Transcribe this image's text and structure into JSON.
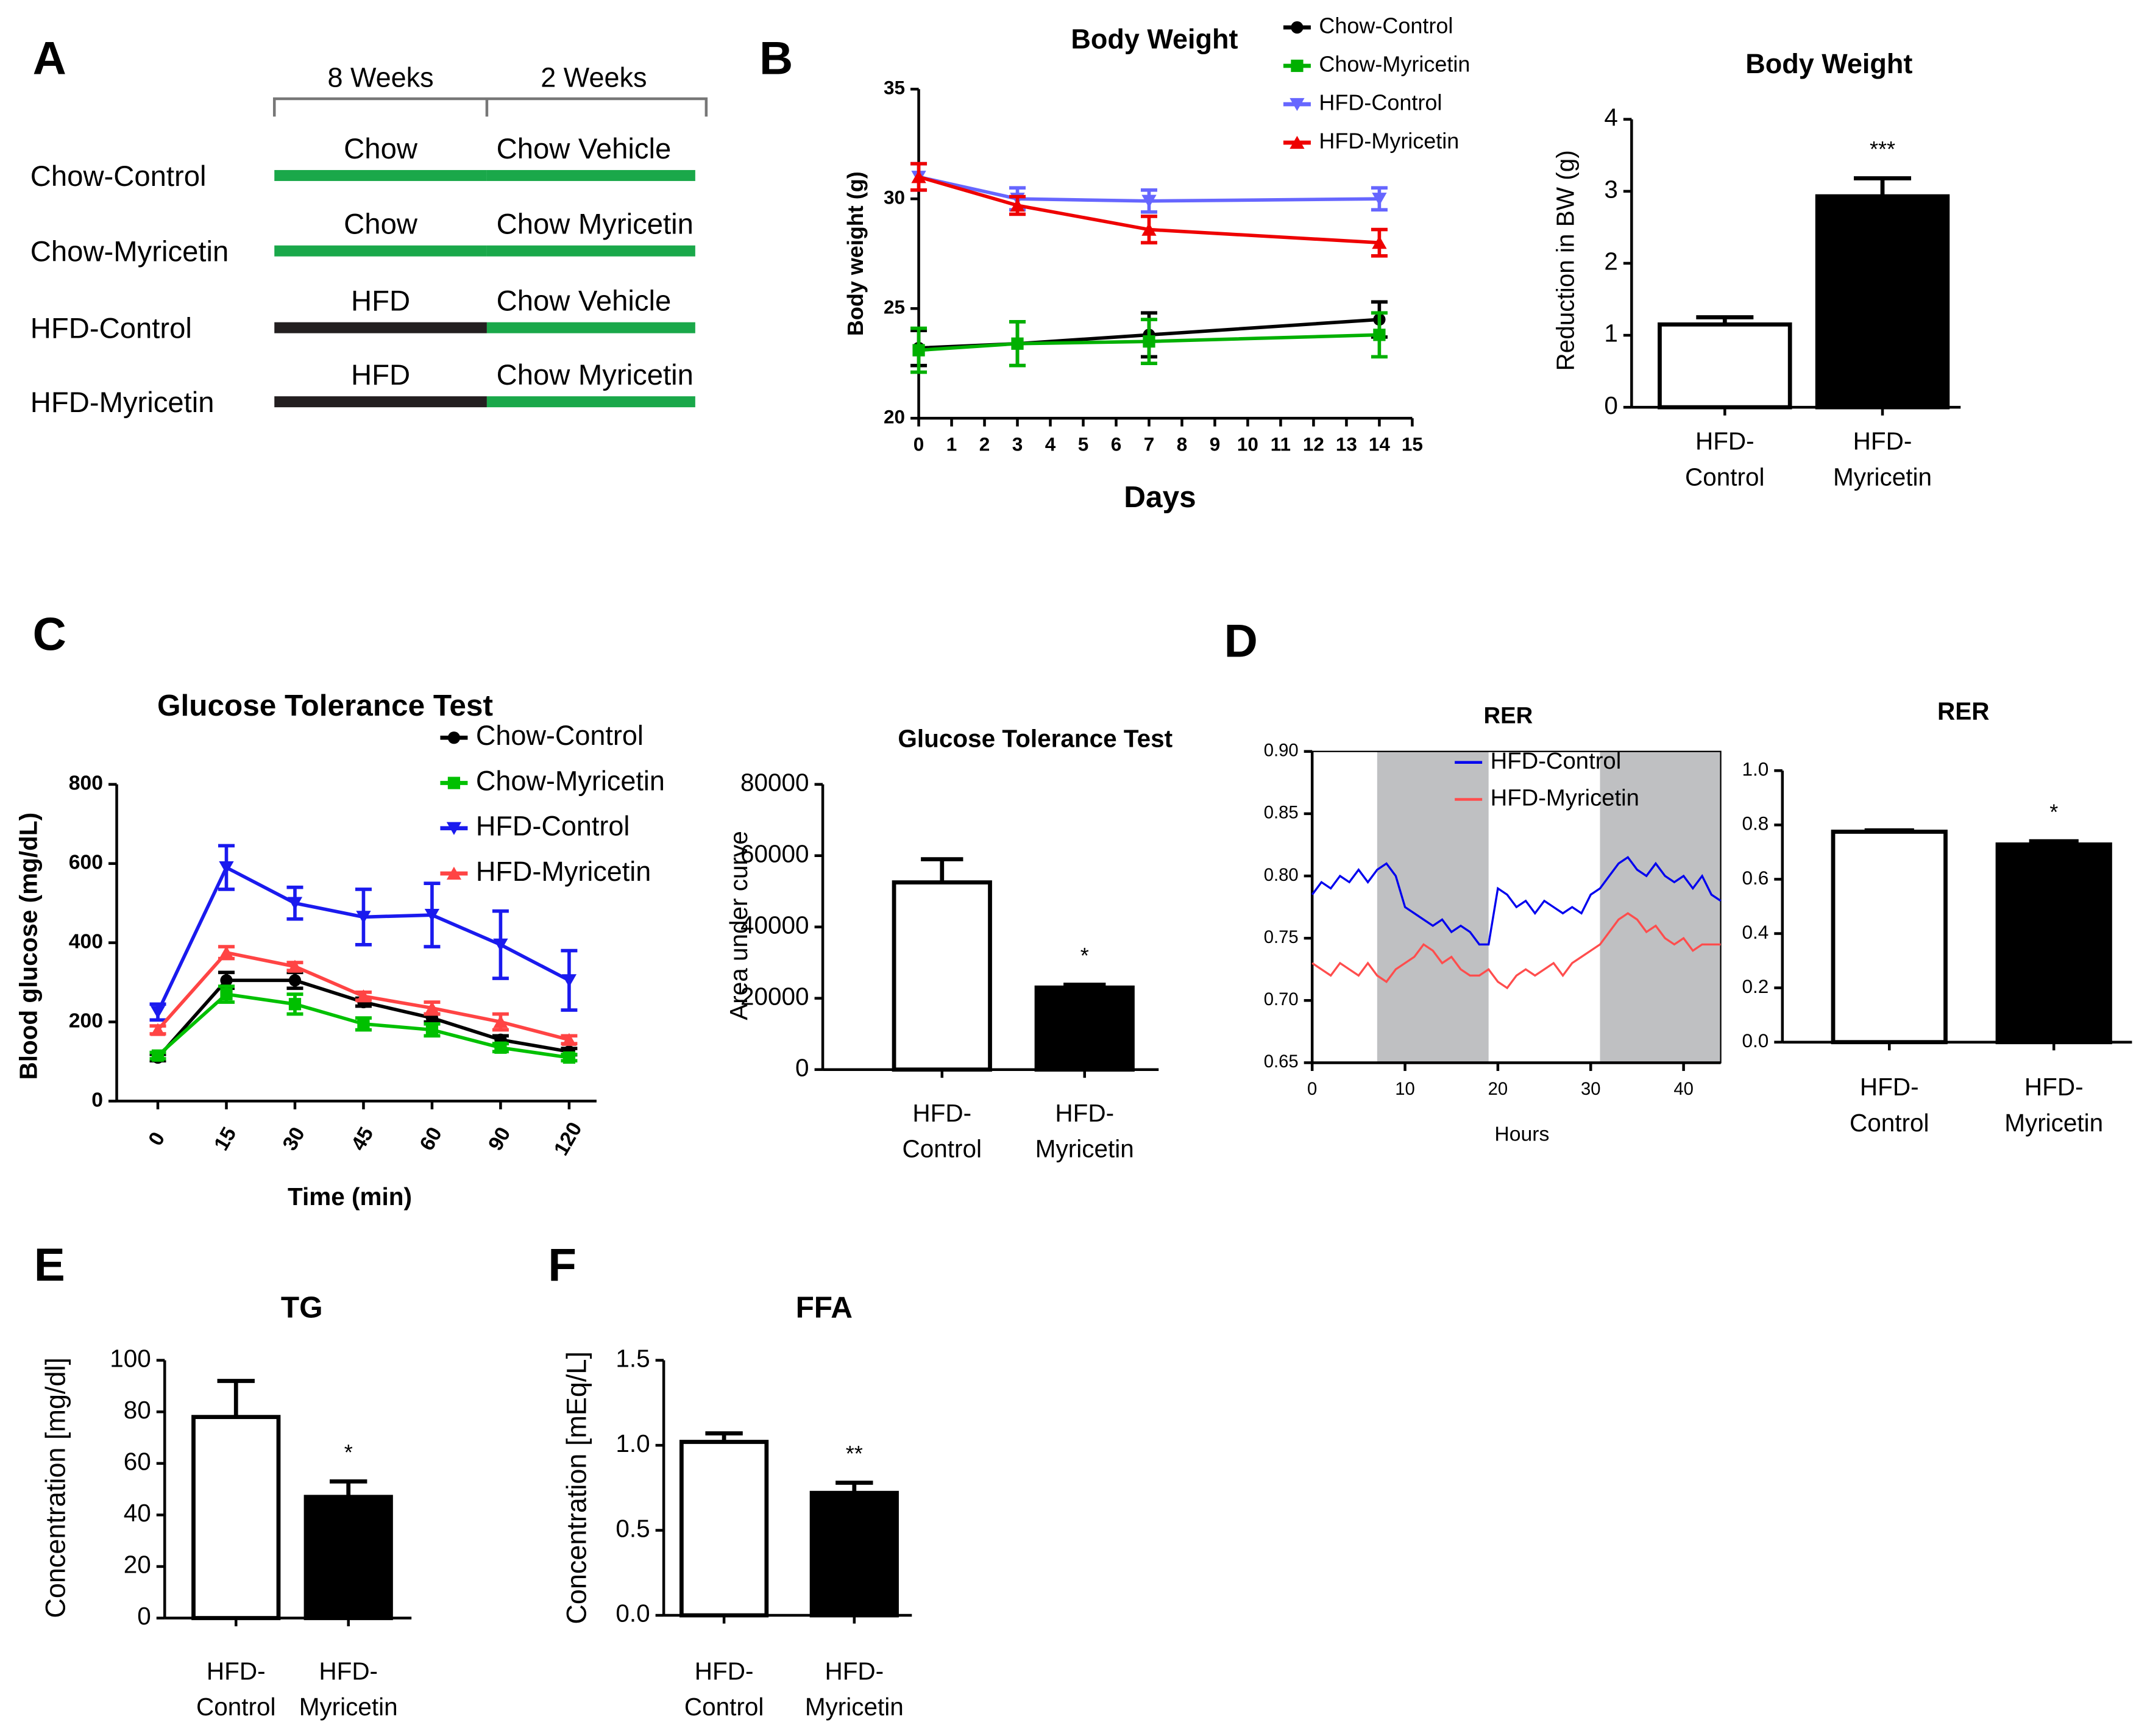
{
  "panel_labels": [
    "A",
    "B",
    "C",
    "D",
    "E",
    "F"
  ],
  "diagram": {
    "periods": [
      "8 Weeks",
      "2 Weeks"
    ],
    "rows": [
      {
        "label": "Chow-Control",
        "phase1": "Chow",
        "phase1_color": "#1aa84a",
        "phase2": "Chow",
        "phase2_color": "#1aa84a",
        "treatment": "Vehicle",
        "treatment_color": "#3a3a9a"
      },
      {
        "label": "Chow-Myricetin",
        "phase1": "Chow",
        "phase1_color": "#1aa84a",
        "phase2": "Chow",
        "phase2_color": "#1aa84a",
        "treatment": "Myricetin",
        "treatment_color": "#ee2222"
      },
      {
        "label": "HFD-Control",
        "phase1": "HFD",
        "phase1_color": "#231f20",
        "phase2": "Chow",
        "phase2_color": "#1aa84a",
        "treatment": "Vehicle",
        "treatment_color": "#3a3a9a"
      },
      {
        "label": "HFD-Myricetin",
        "phase1": "HFD",
        "phase1_color": "#231f20",
        "phase2": "Chow",
        "phase2_color": "#1aa84a",
        "treatment": "Myricetin",
        "treatment_color": "#ee2222"
      }
    ]
  },
  "chart_data": [
    {
      "type": "line",
      "title": "Body Weight",
      "x_label": "Days",
      "y_label": "Body weight (g)",
      "x": [
        0,
        3,
        7,
        14
      ],
      "xlim": [
        0,
        15
      ],
      "xticks": [
        0,
        1,
        2,
        3,
        4,
        5,
        6,
        7,
        8,
        9,
        10,
        11,
        12,
        13,
        14,
        15
      ],
      "ylim": [
        20,
        35
      ],
      "yticks": [
        20,
        25,
        30,
        35
      ],
      "series": [
        {
          "name": "Chow-Control",
          "color": "#000000",
          "marker": "circle",
          "values": [
            23.2,
            23.4,
            23.8,
            24.5
          ],
          "errors": [
            0.8,
            1.0,
            1.0,
            0.8
          ]
        },
        {
          "name": "Chow-Myricetin",
          "color": "#00b000",
          "marker": "square",
          "values": [
            23.1,
            23.4,
            23.5,
            23.8
          ],
          "errors": [
            1.0,
            1.0,
            1.0,
            1.0
          ]
        },
        {
          "name": "HFD-Control",
          "color": "#6666ff",
          "marker": "triangle-down",
          "values": [
            31.0,
            30.0,
            29.9,
            30.0
          ],
          "errors": [
            0.6,
            0.5,
            0.5,
            0.5
          ]
        },
        {
          "name": "HFD-Myricetin",
          "color": "#ee0000",
          "marker": "triangle-up",
          "values": [
            31.0,
            29.7,
            28.6,
            28.0
          ],
          "errors": [
            0.6,
            0.4,
            0.6,
            0.6
          ]
        }
      ]
    },
    {
      "type": "bar",
      "title": "Body Weight",
      "y_label": "Reduction in BW (g)",
      "categories": [
        "HFD-Control",
        "HFD-Myricetin"
      ],
      "values": [
        1.15,
        2.93
      ],
      "errors": [
        0.1,
        0.25
      ],
      "colors": [
        "#ffffff",
        "#000000"
      ],
      "significance": [
        null,
        "***"
      ],
      "ylim": [
        0,
        4
      ],
      "yticks": [
        0,
        1,
        2,
        3,
        4
      ]
    },
    {
      "type": "line",
      "title": "Glucose Tolerance Test",
      "x_label": "Time (min)",
      "y_label": "Blood glucose (mg/dL)",
      "categories": [
        "0",
        "15",
        "30",
        "45",
        "60",
        "90",
        "120"
      ],
      "ylim": [
        0,
        800
      ],
      "yticks": [
        0,
        200,
        400,
        600,
        800
      ],
      "series": [
        {
          "name": "Chow-Control",
          "color": "#000000",
          "marker": "circle",
          "values": [
            110,
            305,
            305,
            250,
            210,
            155,
            125
          ],
          "errors": [
            8,
            20,
            20,
            10,
            10,
            10,
            8
          ]
        },
        {
          "name": "Chow-Myricetin",
          "color": "#00c000",
          "marker": "square",
          "values": [
            115,
            270,
            245,
            195,
            180,
            135,
            110
          ],
          "errors": [
            8,
            20,
            25,
            15,
            15,
            10,
            8
          ]
        },
        {
          "name": "HFD-Control",
          "color": "#1a1aee",
          "marker": "triangle-down",
          "values": [
            225,
            590,
            500,
            465,
            470,
            395,
            305
          ],
          "errors": [
            20,
            55,
            40,
            70,
            80,
            85,
            75
          ]
        },
        {
          "name": "HFD-Myricetin",
          "color": "#ff4444",
          "marker": "triangle-up",
          "values": [
            180,
            375,
            340,
            265,
            235,
            200,
            155
          ],
          "errors": [
            10,
            15,
            10,
            10,
            15,
            20,
            10
          ]
        }
      ]
    },
    {
      "type": "bar",
      "title": "Glucose Tolerance Test",
      "y_label": "Area under curve",
      "categories": [
        "HFD-Control",
        "HFD-Myricetin"
      ],
      "values": [
        52500,
        23000
      ],
      "errors": [
        6500,
        800
      ],
      "colors": [
        "#ffffff",
        "#000000"
      ],
      "significance": [
        null,
        "*"
      ],
      "ylim": [
        0,
        80000
      ],
      "yticks": [
        0,
        20000,
        40000,
        60000,
        80000
      ]
    },
    {
      "type": "line",
      "title": "RER",
      "x_label": "Hours",
      "frame": true,
      "shaded": [
        [
          7,
          19
        ],
        [
          31,
          44
        ]
      ],
      "x": [
        0,
        1,
        2,
        3,
        4,
        5,
        6,
        7,
        8,
        9,
        10,
        11,
        12,
        13,
        14,
        15,
        16,
        17,
        18,
        19,
        20,
        21,
        22,
        23,
        24,
        25,
        26,
        27,
        28,
        29,
        30,
        31,
        32,
        33,
        34,
        35,
        36,
        37,
        38,
        39,
        40,
        41,
        42,
        43,
        44
      ],
      "xlim": [
        0,
        44
      ],
      "xticks": [
        0,
        10,
        20,
        30,
        40
      ],
      "ylim": [
        0.65,
        0.9
      ],
      "yticks": [
        0.65,
        {
          "value": 0.7,
          "label": "0.70"
        },
        0.75,
        {
          "value": 0.8,
          "label": "0.80"
        },
        0.85,
        {
          "value": 0.9,
          "label": "0.90"
        }
      ],
      "series": [
        {
          "name": "HFD-Control",
          "color": "#0000ee",
          "values": [
            0.785,
            0.795,
            0.79,
            0.8,
            0.795,
            0.805,
            0.795,
            0.805,
            0.81,
            0.8,
            0.775,
            0.77,
            0.765,
            0.76,
            0.765,
            0.755,
            0.76,
            0.755,
            0.745,
            0.745,
            0.79,
            0.785,
            0.775,
            0.78,
            0.77,
            0.78,
            0.775,
            0.77,
            0.775,
            0.77,
            0.785,
            0.79,
            0.8,
            0.81,
            0.815,
            0.805,
            0.8,
            0.81,
            0.8,
            0.795,
            0.8,
            0.79,
            0.8,
            0.785,
            0.78
          ]
        },
        {
          "name": "HFD-Myricetin",
          "color": "#ff4d4d",
          "values": [
            0.73,
            0.725,
            0.72,
            0.73,
            0.725,
            0.72,
            0.73,
            0.72,
            0.715,
            0.725,
            0.73,
            0.735,
            0.745,
            0.74,
            0.73,
            0.735,
            0.725,
            0.72,
            0.72,
            0.725,
            0.715,
            0.71,
            0.72,
            0.725,
            0.72,
            0.725,
            0.73,
            0.72,
            0.73,
            0.735,
            0.74,
            0.745,
            0.755,
            0.765,
            0.77,
            0.765,
            0.755,
            0.76,
            0.75,
            0.745,
            0.75,
            0.74,
            0.745,
            0.745,
            0.745
          ]
        }
      ]
    },
    {
      "type": "bar",
      "title": "RER",
      "categories": [
        "HFD-Control",
        "HFD-Myricetin"
      ],
      "values": [
        0.775,
        0.728
      ],
      "errors": [
        0.005,
        0.012
      ],
      "colors": [
        "#ffffff",
        "#000000"
      ],
      "significance": [
        null,
        "*"
      ],
      "ylim": [
        0,
        1.0
      ],
      "yticks": [
        {
          "value": 0,
          "label": "0.0"
        },
        0.2,
        0.4,
        0.6,
        0.8,
        {
          "value": 1,
          "label": "1.0"
        }
      ]
    },
    {
      "type": "bar",
      "title": "TG",
      "y_label": "Concentration [mg/dl]",
      "categories": [
        "HFD-Control",
        "HFD-Myricetin"
      ],
      "values": [
        78,
        47
      ],
      "errors": [
        14,
        6
      ],
      "colors": [
        "#ffffff",
        "#000000"
      ],
      "significance": [
        null,
        "*"
      ],
      "ylim": [
        0,
        100
      ],
      "yticks": [
        0,
        20,
        40,
        60,
        80,
        100
      ]
    },
    {
      "type": "bar",
      "title": "FFA",
      "y_label": "Concentration [mEq/L]",
      "categories": [
        "HFD-Control",
        "HFD-Myricetin"
      ],
      "values": [
        1.02,
        0.72
      ],
      "errors": [
        0.05,
        0.06
      ],
      "colors": [
        "#ffffff",
        "#000000"
      ],
      "significance": [
        null,
        "**"
      ],
      "ylim": [
        0,
        1.5
      ],
      "yticks": [
        {
          "value": 0,
          "label": "0.0"
        },
        0.5,
        {
          "value": 1,
          "label": "1.0"
        },
        1.5
      ]
    }
  ]
}
